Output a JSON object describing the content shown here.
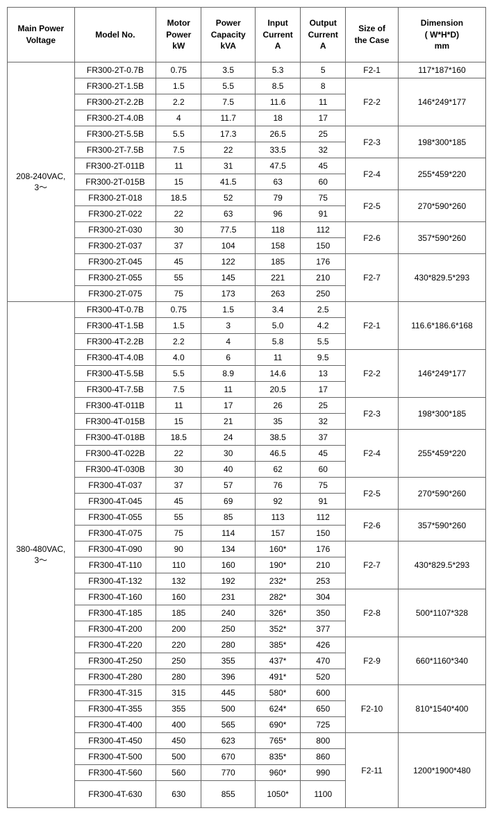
{
  "headers": {
    "voltage": "Main Power\nVoltage",
    "model": "Model No.",
    "motor": "Motor\nPower\nkW",
    "capacity": "Power\nCapacity\nkVA",
    "input": "Input\nCurrent\nA",
    "output": "Output\nCurrent\nA",
    "case": "Size of\nthe Case",
    "dimension": "Dimension\n( W*H*D)\nmm"
  },
  "sections": [
    {
      "voltage": "208-240VAC,\n3～",
      "groups": [
        {
          "case": "F2-1",
          "dimension": "117*187*160",
          "rows": [
            {
              "model": "FR300-2T-0.7B",
              "motor": "0.75",
              "cap": "3.5",
              "icur": "5.3",
              "ocur": "5"
            }
          ]
        },
        {
          "case": "F2-2",
          "dimension": "146*249*177",
          "extraRowBefore": true,
          "rows": [
            {
              "model": "FR300-2T-1.5B",
              "motor": "1.5",
              "cap": "5.5",
              "icur": "8.5",
              "ocur": "8"
            },
            {
              "model": "FR300-2T-2.2B",
              "motor": "2.2",
              "cap": "7.5",
              "icur": "11.6",
              "ocur": "11"
            },
            {
              "model": "FR300-2T-4.0B",
              "motor": "4",
              "cap": "11.7",
              "icur": "18",
              "ocur": "17"
            }
          ]
        },
        {
          "case": "F2-3",
          "dimension": "198*300*185",
          "rows": [
            {
              "model": "FR300-2T-5.5B",
              "motor": "5.5",
              "cap": "17.3",
              "icur": "26.5",
              "ocur": "25"
            },
            {
              "model": "FR300-2T-7.5B",
              "motor": "7.5",
              "cap": "22",
              "icur": "33.5",
              "ocur": "32"
            }
          ]
        },
        {
          "case": "F2-4",
          "dimension": "255*459*220",
          "rows": [
            {
              "model": "FR300-2T-011B",
              "motor": "11",
              "cap": "31",
              "icur": "47.5",
              "ocur": "45"
            },
            {
              "model": "FR300-2T-015B",
              "motor": "15",
              "cap": "41.5",
              "icur": "63",
              "ocur": "60"
            }
          ]
        },
        {
          "case": "F2-5",
          "dimension": "270*590*260",
          "rows": [
            {
              "model": "FR300-2T-018",
              "motor": "18.5",
              "cap": "52",
              "icur": "79",
              "ocur": "75"
            },
            {
              "model": "FR300-2T-022",
              "motor": "22",
              "cap": "63",
              "icur": "96",
              "ocur": "91"
            }
          ]
        },
        {
          "case": "F2-6",
          "dimension": "357*590*260",
          "rows": [
            {
              "model": "FR300-2T-030",
              "motor": "30",
              "cap": "77.5",
              "icur": "118",
              "ocur": "112"
            },
            {
              "model": "FR300-2T-037",
              "motor": "37",
              "cap": "104",
              "icur": "158",
              "ocur": "150"
            }
          ]
        },
        {
          "case": "F2-7",
          "dimension": "430*829.5*293",
          "rows": [
            {
              "model": "FR300-2T-045",
              "motor": "45",
              "cap": "122",
              "icur": "185",
              "ocur": "176"
            },
            {
              "model": "FR300-2T-055",
              "motor": "55",
              "cap": "145",
              "icur": "221",
              "ocur": "210"
            },
            {
              "model": "FR300-2T-075",
              "motor": "75",
              "cap": "173",
              "icur": "263",
              "ocur": "250"
            }
          ]
        }
      ]
    },
    {
      "voltage": "380-480VAC,\n3～",
      "groups": [
        {
          "case": "F2-1",
          "dimension": "116.6*186.6*168",
          "rows": [
            {
              "model": "FR300-4T-0.7B",
              "motor": "0.75",
              "cap": "1.5",
              "icur": "3.4",
              "ocur": "2.5"
            },
            {
              "model": "FR300-4T-1.5B",
              "motor": "1.5",
              "cap": "3",
              "icur": "5.0",
              "ocur": "4.2"
            },
            {
              "model": "FR300-4T-2.2B",
              "motor": "2.2",
              "cap": "4",
              "icur": "5.8",
              "ocur": "5.5"
            }
          ]
        },
        {
          "case": "F2-2",
          "dimension": "146*249*177",
          "rows": [
            {
              "model": "FR300-4T-4.0B",
              "motor": "4.0",
              "cap": "6",
              "icur": "11",
              "ocur": "9.5"
            },
            {
              "model": "FR300-4T-5.5B",
              "motor": "5.5",
              "cap": "8.9",
              "icur": "14.6",
              "ocur": "13"
            },
            {
              "model": "FR300-4T-7.5B",
              "motor": "7.5",
              "cap": "11",
              "icur": "20.5",
              "ocur": "17"
            }
          ]
        },
        {
          "case": "F2-3",
          "dimension": "198*300*185",
          "rows": [
            {
              "model": "FR300-4T-011B",
              "motor": "11",
              "cap": "17",
              "icur": "26",
              "ocur": "25"
            },
            {
              "model": "FR300-4T-015B",
              "motor": "15",
              "cap": "21",
              "icur": "35",
              "ocur": "32"
            }
          ]
        },
        {
          "case": "F2-4",
          "dimension": "255*459*220",
          "rows": [
            {
              "model": "FR300-4T-018B",
              "motor": "18.5",
              "cap": "24",
              "icur": "38.5",
              "ocur": "37"
            },
            {
              "model": "FR300-4T-022B",
              "motor": "22",
              "cap": "30",
              "icur": "46.5",
              "ocur": "45"
            },
            {
              "model": "FR300-4T-030B",
              "motor": "30",
              "cap": "40",
              "icur": "62",
              "ocur": "60"
            }
          ]
        },
        {
          "case": "F2-5",
          "dimension": "270*590*260",
          "rows": [
            {
              "model": "FR300-4T-037",
              "motor": "37",
              "cap": "57",
              "icur": "76",
              "ocur": "75"
            },
            {
              "model": "FR300-4T-045",
              "motor": "45",
              "cap": "69",
              "icur": "92",
              "ocur": "91"
            }
          ]
        },
        {
          "case": "F2-6",
          "dimension": "357*590*260",
          "rows": [
            {
              "model": "FR300-4T-055",
              "motor": "55",
              "cap": "85",
              "icur": "113",
              "ocur": "112"
            },
            {
              "model": "FR300-4T-075",
              "motor": "75",
              "cap": "114",
              "icur": "157",
              "ocur": "150"
            }
          ]
        },
        {
          "case": "F2-7",
          "dimension": "430*829.5*293",
          "rows": [
            {
              "model": "FR300-4T-090",
              "motor": "90",
              "cap": "134",
              "icur": "160*",
              "ocur": "176"
            },
            {
              "model": "FR300-4T-110",
              "motor": "110",
              "cap": "160",
              "icur": "190*",
              "ocur": "210"
            },
            {
              "model": "FR300-4T-132",
              "motor": "132",
              "cap": "192",
              "icur": "232*",
              "ocur": "253"
            }
          ]
        },
        {
          "case": "F2-8",
          "dimension": "500*1107*328",
          "rows": [
            {
              "model": "FR300-4T-160",
              "motor": "160",
              "cap": "231",
              "icur": "282*",
              "ocur": "304"
            },
            {
              "model": "FR300-4T-185",
              "motor": "185",
              "cap": "240",
              "icur": "326*",
              "ocur": "350"
            },
            {
              "model": "FR300-4T-200",
              "motor": "200",
              "cap": "250",
              "icur": "352*",
              "ocur": "377"
            }
          ]
        },
        {
          "case": "F2-9",
          "dimension": "660*1160*340",
          "rows": [
            {
              "model": "FR300-4T-220",
              "motor": "220",
              "cap": "280",
              "icur": "385*",
              "ocur": "426"
            },
            {
              "model": "FR300-4T-250",
              "motor": "250",
              "cap": "355",
              "icur": "437*",
              "ocur": "470"
            },
            {
              "model": "FR300-4T-280",
              "motor": "280",
              "cap": "396",
              "icur": "491*",
              "ocur": "520"
            }
          ]
        },
        {
          "case": "F2-10",
          "dimension": "810*1540*400",
          "rows": [
            {
              "model": "FR300-4T-315",
              "motor": "315",
              "cap": "445",
              "icur": "580*",
              "ocur": "600"
            },
            {
              "model": "FR300-4T-355",
              "motor": "355",
              "cap": "500",
              "icur": "624*",
              "ocur": "650"
            },
            {
              "model": "FR300-4T-400",
              "motor": "400",
              "cap": "565",
              "icur": "690*",
              "ocur": "725"
            }
          ]
        },
        {
          "case": "F2-11",
          "dimension": "1200*1900*480",
          "rows": [
            {
              "model": "FR300-4T-450",
              "motor": "450",
              "cap": "623",
              "icur": "765*",
              "ocur": "800"
            },
            {
              "model": "FR300-4T-500",
              "motor": "500",
              "cap": "670",
              "icur": "835*",
              "ocur": "860"
            },
            {
              "model": "FR300-4T-560",
              "motor": "560",
              "cap": "770",
              "icur": "960*",
              "ocur": "990"
            },
            {
              "model": "FR300-4T-630",
              "motor": "630",
              "cap": "855",
              "icur": "1050*",
              "ocur": "1100",
              "tall": true
            }
          ]
        }
      ]
    }
  ]
}
